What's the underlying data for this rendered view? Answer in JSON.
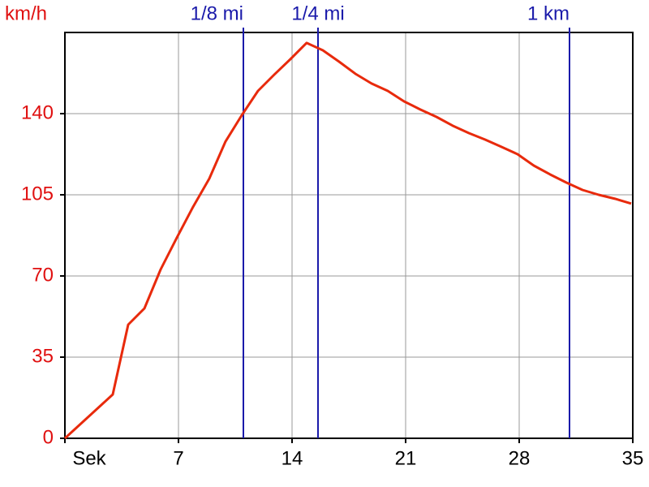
{
  "chart_data": {
    "type": "line",
    "y_label": "km/h",
    "y_label_color": "#e01010",
    "tick_color": "#e01010",
    "xlim": [
      0,
      35
    ],
    "ylim": [
      0,
      175
    ],
    "xticks": [
      {
        "value": 0,
        "label": "Sek"
      },
      7,
      14,
      21,
      28,
      35
    ],
    "yticks": [
      0,
      35,
      70,
      105,
      140
    ],
    "grid": true,
    "markers": [
      {
        "label": "1/8 mi",
        "x": 11.0
      },
      {
        "label": "1/4 mi",
        "x": 15.6
      },
      {
        "label": "1 km",
        "x": 31.1
      }
    ],
    "marker_color": "#1a1aaa",
    "series": [
      {
        "color": "#e82a0c",
        "x": [
          0,
          2.95,
          3.9,
          4.9,
          5.9,
          6.9,
          7.9,
          8.9,
          9.9,
          10.9,
          11.9,
          12.9,
          13.9,
          14.9,
          15.9,
          16.9,
          17.9,
          18.9,
          19.9,
          20.9,
          21.9,
          22.9,
          23.9,
          24.9,
          25.9,
          26.9,
          27.9,
          28.9,
          29.9,
          30.9,
          31.9,
          32.9,
          33.9,
          34.9
        ],
        "values": [
          0,
          18.9,
          49,
          56,
          72.8,
          86.5,
          99.8,
          112,
          128,
          139.3,
          149.8,
          156.8,
          163.5,
          170.5,
          167.3,
          162.4,
          157.2,
          153,
          149.8,
          145.3,
          141.8,
          138.6,
          134.8,
          131.6,
          128.8,
          125.7,
          122.5,
          117.6,
          113.8,
          110.3,
          107.1,
          105,
          103.3,
          101.2
        ]
      }
    ]
  }
}
